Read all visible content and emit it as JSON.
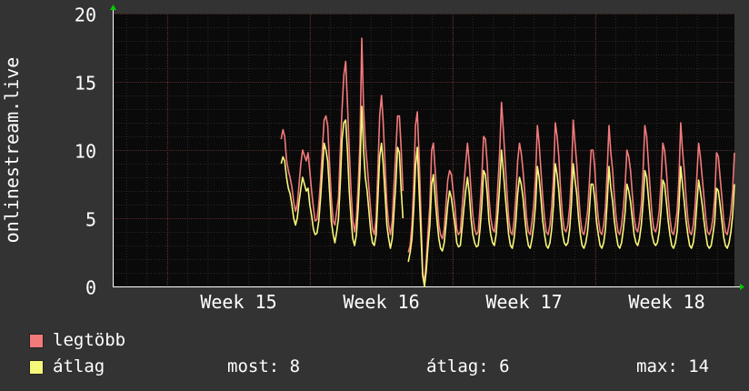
{
  "chart_data": {
    "type": "line",
    "ylabel": "onlinestream.live",
    "ylim": [
      0,
      20
    ],
    "y_ticks": [
      0,
      5,
      10,
      15,
      20
    ],
    "x_ticks": [
      "Week 15",
      "Week 16",
      "Week 17",
      "Week 18"
    ],
    "grid": true,
    "colors": {
      "background": "#333333",
      "plot_background": "#0a0a0a",
      "grid": "#5a2a2a",
      "axis": "#ffffff",
      "arrow": "#00cc00"
    },
    "series": [
      {
        "name": "legtöbb",
        "color": "#f27a7a",
        "values": [
          null,
          null,
          null,
          null,
          null,
          null,
          null,
          null,
          null,
          null,
          null,
          null,
          null,
          null,
          null,
          null,
          null,
          null,
          null,
          null,
          null,
          null,
          null,
          null,
          null,
          null,
          null,
          null,
          null,
          null,
          null,
          null,
          null,
          null,
          null,
          null,
          null,
          null,
          null,
          null,
          null,
          null,
          null,
          null,
          null,
          null,
          null,
          null,
          null,
          null,
          null,
          null,
          null,
          null,
          null,
          null,
          null,
          null,
          null,
          null,
          null,
          null,
          null,
          null,
          null,
          null,
          null,
          null,
          null,
          null,
          null,
          null,
          null,
          null,
          null,
          null,
          null,
          null,
          null,
          null,
          null,
          null,
          null,
          null,
          null,
          null,
          null,
          null,
          null,
          null,
          null,
          null,
          null,
          null,
          10.8,
          11.5,
          11.0,
          9.3,
          8.5,
          8.0,
          7.3,
          6.2,
          5.5,
          6.0,
          7.5,
          9.0,
          10.0,
          9.6,
          9.2,
          9.8,
          8.5,
          7.0,
          5.8,
          4.8,
          4.9,
          6.0,
          7.8,
          10.0,
          12.2,
          12.5,
          11.8,
          9.0,
          6.5,
          4.8,
          4.5,
          5.5,
          6.5,
          9.8,
          13.0,
          15.5,
          16.5,
          13.5,
          10.0,
          7.0,
          4.8,
          4.0,
          5.0,
          7.5,
          10.5,
          18.2,
          13.0,
          10.5,
          9.0,
          7.2,
          5.5,
          4.2,
          3.8,
          5.0,
          8.5,
          12.5,
          14.0,
          12.0,
          9.0,
          6.0,
          4.5,
          3.8,
          4.8,
          7.5,
          9.8,
          12.5,
          12.5,
          10.0,
          7.0,
          null,
          null,
          2.5,
          3.0,
          4.5,
          7.5,
          11.8,
          12.8,
          9.5,
          5.5,
          1.0,
          0.3,
          2.0,
          4.0,
          6.0,
          10.0,
          10.5,
          8.5,
          6.5,
          4.5,
          3.8,
          3.5,
          4.2,
          6.0,
          7.8,
          8.5,
          8.2,
          7.0,
          5.8,
          4.2,
          3.8,
          4.0,
          5.8,
          7.5,
          9.0,
          10.5,
          9.0,
          7.0,
          5.2,
          4.2,
          3.8,
          4.0,
          5.8,
          8.0,
          11.0,
          10.8,
          9.0,
          6.5,
          5.0,
          4.2,
          4.0,
          5.0,
          7.5,
          10.0,
          13.5,
          11.5,
          9.2,
          7.0,
          5.0,
          4.0,
          3.8,
          4.8,
          6.5,
          9.2,
          10.5,
          9.8,
          8.5,
          6.8,
          5.0,
          4.0,
          3.8,
          4.8,
          6.0,
          8.0,
          11.8,
          10.5,
          8.5,
          6.5,
          5.0,
          4.0,
          3.8,
          4.5,
          5.8,
          8.0,
          12.0,
          11.0,
          9.5,
          7.0,
          5.2,
          4.2,
          4.0,
          4.5,
          5.8,
          8.0,
          12.2,
          10.5,
          9.0,
          6.8,
          5.0,
          4.0,
          3.8,
          4.5,
          5.5,
          7.5,
          10.0,
          10.0,
          8.8,
          6.5,
          5.0,
          4.0,
          3.8,
          4.5,
          5.8,
          8.5,
          11.8,
          9.8,
          8.5,
          6.5,
          5.0,
          4.0,
          3.8,
          4.5,
          5.8,
          7.5,
          10.0,
          9.5,
          8.5,
          6.8,
          5.0,
          4.2,
          4.0,
          4.8,
          6.0,
          8.5,
          11.8,
          11.0,
          9.0,
          7.0,
          5.2,
          4.2,
          4.0,
          4.5,
          5.5,
          7.5,
          10.5,
          10.0,
          8.5,
          6.5,
          5.0,
          4.0,
          3.8,
          4.5,
          5.5,
          7.8,
          12.0,
          10.0,
          8.5,
          6.5,
          5.0,
          4.0,
          3.8,
          4.5,
          5.8,
          8.0,
          10.5,
          9.5,
          8.0,
          6.5,
          5.0,
          4.0,
          3.8,
          4.2,
          5.0,
          6.5,
          9.8,
          9.5,
          8.0,
          6.5,
          4.8,
          4.0,
          3.8,
          4.5,
          5.5,
          7.0,
          9.8
        ]
      },
      {
        "name": "átlag",
        "color": "#f7f77a",
        "values": [
          null,
          null,
          null,
          null,
          null,
          null,
          null,
          null,
          null,
          null,
          null,
          null,
          null,
          null,
          null,
          null,
          null,
          null,
          null,
          null,
          null,
          null,
          null,
          null,
          null,
          null,
          null,
          null,
          null,
          null,
          null,
          null,
          null,
          null,
          null,
          null,
          null,
          null,
          null,
          null,
          null,
          null,
          null,
          null,
          null,
          null,
          null,
          null,
          null,
          null,
          null,
          null,
          null,
          null,
          null,
          null,
          null,
          null,
          null,
          null,
          null,
          null,
          null,
          null,
          null,
          null,
          null,
          null,
          null,
          null,
          null,
          null,
          null,
          null,
          null,
          null,
          null,
          null,
          null,
          null,
          null,
          null,
          null,
          null,
          null,
          null,
          null,
          null,
          null,
          null,
          null,
          null,
          null,
          null,
          9.0,
          9.5,
          9.2,
          8.0,
          7.2,
          6.8,
          6.0,
          5.0,
          4.5,
          5.0,
          6.2,
          7.2,
          8.0,
          7.5,
          7.0,
          7.2,
          6.0,
          5.2,
          4.2,
          3.8,
          3.9,
          4.8,
          6.5,
          8.5,
          10.5,
          10.0,
          9.2,
          7.0,
          4.8,
          3.8,
          3.2,
          4.0,
          5.0,
          7.5,
          10.8,
          12.0,
          12.2,
          10.0,
          7.0,
          5.0,
          3.5,
          3.0,
          3.8,
          5.8,
          8.5,
          13.2,
          10.0,
          8.0,
          7.0,
          5.5,
          4.0,
          3.2,
          3.0,
          3.8,
          6.5,
          9.5,
          10.5,
          9.0,
          6.8,
          4.5,
          3.5,
          2.8,
          3.5,
          5.5,
          7.5,
          10.2,
          9.8,
          7.0,
          5.0,
          null,
          null,
          1.8,
          2.5,
          3.5,
          5.8,
          8.8,
          10.2,
          7.0,
          4.0,
          0.8,
          0.0,
          1.2,
          3.0,
          4.5,
          7.5,
          8.2,
          6.5,
          4.8,
          3.5,
          2.8,
          2.6,
          3.2,
          4.5,
          6.0,
          7.0,
          6.5,
          5.5,
          4.5,
          3.2,
          2.9,
          3.0,
          4.3,
          5.8,
          7.0,
          8.0,
          6.8,
          5.0,
          3.8,
          3.2,
          2.9,
          3.0,
          4.2,
          6.0,
          8.5,
          8.2,
          6.8,
          4.8,
          3.8,
          3.2,
          3.0,
          3.8,
          5.5,
          7.5,
          10.0,
          8.5,
          6.8,
          5.2,
          3.8,
          3.0,
          2.8,
          3.5,
          4.8,
          6.8,
          8.0,
          7.5,
          6.5,
          5.0,
          3.8,
          3.0,
          2.8,
          3.5,
          4.5,
          6.0,
          8.8,
          8.0,
          6.5,
          4.8,
          3.8,
          3.0,
          2.8,
          3.2,
          4.2,
          6.0,
          9.0,
          8.2,
          7.0,
          5.2,
          3.9,
          3.2,
          3.0,
          3.2,
          4.2,
          6.0,
          9.0,
          7.8,
          6.8,
          5.0,
          3.8,
          3.0,
          2.8,
          3.2,
          4.0,
          5.5,
          7.5,
          7.5,
          6.5,
          4.8,
          3.8,
          3.0,
          2.8,
          3.2,
          4.2,
          6.2,
          8.8,
          7.2,
          6.2,
          4.8,
          3.8,
          3.0,
          2.8,
          3.2,
          4.2,
          5.5,
          7.5,
          7.0,
          6.2,
          5.0,
          3.8,
          3.2,
          3.0,
          3.5,
          4.5,
          6.2,
          8.5,
          8.0,
          6.5,
          5.0,
          3.8,
          3.2,
          3.0,
          3.2,
          4.0,
          5.5,
          7.8,
          7.5,
          6.2,
          4.8,
          3.8,
          3.0,
          2.8,
          3.2,
          4.0,
          5.8,
          8.8,
          7.5,
          6.2,
          4.8,
          3.8,
          3.0,
          2.8,
          3.2,
          4.2,
          6.0,
          7.8,
          7.0,
          6.0,
          4.8,
          3.8,
          3.0,
          2.8,
          3.0,
          3.8,
          4.8,
          7.2,
          7.0,
          6.0,
          4.8,
          3.6,
          3.0,
          2.8,
          3.2,
          4.0,
          5.2,
          7.5
        ]
      }
    ]
  },
  "legend": [
    {
      "label": "legtöbb",
      "color": "#f27a7a"
    },
    {
      "label": "átlag",
      "color": "#f7f77a"
    }
  ],
  "stats": {
    "now": "most: 8",
    "avg": "átlag: 6",
    "max": "max: 14"
  }
}
